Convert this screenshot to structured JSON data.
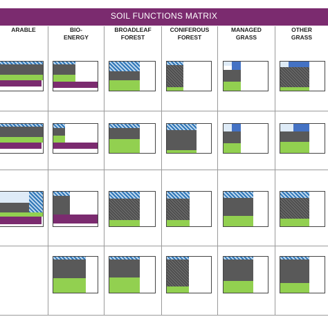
{
  "title": "SOIL FUNCTIONS MATRIX",
  "columns": [
    {
      "line1": "ARABLE",
      "line2": ""
    },
    {
      "line1": "BIO-",
      "line2": "ENERGY"
    },
    {
      "line1": "BROADLEAF",
      "line2": "FOREST"
    },
    {
      "line1": "CONIFEROUS",
      "line2": "FOREST"
    },
    {
      "line1": "MANAGED",
      "line2": "GRASS"
    },
    {
      "line1": "OTHER",
      "line2": "GRASS"
    }
  ],
  "colors": {
    "title_bar": "#7b2b6f",
    "purple": "#7b2b6f",
    "green": "#92d050",
    "dark_grey": "#595959",
    "blue": "#4472c4",
    "light_blue": "#deebf7",
    "hatched_blue": "#9dc3e6"
  },
  "segment_types": [
    "hatched-blue",
    "blue",
    "light-blue",
    "dark-grey",
    "hatched-dark",
    "green",
    "purple"
  ],
  "rows": [
    [
      [
        {
          "c": "hatch",
          "x": 0,
          "y": 0,
          "w": 1,
          "h": 0.12
        },
        {
          "c": "grey",
          "x": 0,
          "y": 0.12,
          "w": 1,
          "h": 0.34
        },
        {
          "c": "green",
          "x": 0,
          "y": 0.46,
          "w": 1,
          "h": 0.18
        },
        {
          "c": "purple",
          "x": 0,
          "y": 0.64,
          "w": 4,
          "h": 0.2
        }
      ],
      [
        {
          "c": "hatch",
          "x": 0,
          "y": 0,
          "w": 0.5,
          "h": 0.12
        },
        {
          "c": "grey",
          "x": 0,
          "y": 0.12,
          "w": 0.5,
          "h": 0.34
        },
        {
          "c": "green",
          "x": 0,
          "y": 0.46,
          "w": 0.5,
          "h": 0.22
        },
        {
          "c": "purple",
          "x": 0,
          "y": 0.68,
          "w": 1,
          "h": 0.2
        }
      ],
      [
        {
          "c": "hatch",
          "x": 0,
          "y": 0,
          "w": 0.66,
          "h": 0.34
        },
        {
          "c": "grey",
          "x": 0,
          "y": 0.34,
          "w": 0.66,
          "h": 0.3
        },
        {
          "c": "green",
          "x": 0,
          "y": 0.64,
          "w": 0.66,
          "h": 0.36
        }
      ],
      [
        {
          "c": "hatch",
          "x": 0,
          "y": 0,
          "w": 0.38,
          "h": 0.14
        },
        {
          "c": "dkhatch",
          "x": 0,
          "y": 0.14,
          "w": 0.38,
          "h": 0.72
        },
        {
          "c": "green",
          "x": 0,
          "y": 0.86,
          "w": 0.38,
          "h": 0.14
        }
      ],
      [
        {
          "c": "light",
          "x": 0,
          "y": 0,
          "w": 0.2,
          "h": 0.16
        },
        {
          "c": "blue",
          "x": 0.2,
          "y": 0,
          "w": 0.2,
          "h": 0.3
        },
        {
          "c": "grey",
          "x": 0,
          "y": 0.3,
          "w": 0.4,
          "h": 0.38
        },
        {
          "c": "green",
          "x": 0,
          "y": 0.68,
          "w": 0.4,
          "h": 0.32
        }
      ],
      [
        {
          "c": "light",
          "x": 0,
          "y": 0,
          "w": 0.2,
          "h": 0.2
        },
        {
          "c": "blue",
          "x": 0.2,
          "y": 0,
          "w": 0.45,
          "h": 0.2
        },
        {
          "c": "dkhatch",
          "x": 0,
          "y": 0.2,
          "w": 0.65,
          "h": 0.66
        },
        {
          "c": "green",
          "x": 0,
          "y": 0.86,
          "w": 0.65,
          "h": 0.14
        }
      ]
    ],
    [
      [
        {
          "c": "hatch",
          "x": 0,
          "y": 0,
          "w": 1,
          "h": 0.12
        },
        {
          "c": "grey",
          "x": 0,
          "y": 0.12,
          "w": 1,
          "h": 0.34
        },
        {
          "c": "green",
          "x": 0,
          "y": 0.46,
          "w": 1,
          "h": 0.18
        },
        {
          "c": "purple",
          "x": 0,
          "y": 0.64,
          "w": 4,
          "h": 0.2
        }
      ],
      [
        {
          "c": "hatch",
          "x": 0,
          "y": 0,
          "w": 0.28,
          "h": 0.16
        },
        {
          "c": "grey",
          "x": 0,
          "y": 0.16,
          "w": 0.28,
          "h": 0.26
        },
        {
          "c": "green",
          "x": 0,
          "y": 0.42,
          "w": 0.28,
          "h": 0.22
        },
        {
          "c": "purple",
          "x": 0,
          "y": 0.64,
          "w": 1,
          "h": 0.2
        }
      ],
      [
        {
          "c": "hatch",
          "x": 0,
          "y": 0,
          "w": 0.66,
          "h": 0.16
        },
        {
          "c": "grey",
          "x": 0,
          "y": 0.16,
          "w": 0.66,
          "h": 0.36
        },
        {
          "c": "green",
          "x": 0,
          "y": 0.52,
          "w": 0.66,
          "h": 0.48
        }
      ],
      [
        {
          "c": "hatch",
          "x": 0,
          "y": 0,
          "w": 0.66,
          "h": 0.22
        },
        {
          "c": "grey",
          "x": 0,
          "y": 0.22,
          "w": 0.66,
          "h": 0.66
        },
        {
          "c": "green",
          "x": 0,
          "y": 0.88,
          "w": 0.66,
          "h": 0.12
        }
      ],
      [
        {
          "c": "light",
          "x": 0,
          "y": 0,
          "w": 0.2,
          "h": 0.28
        },
        {
          "c": "blue",
          "x": 0.2,
          "y": 0,
          "w": 0.2,
          "h": 0.28
        },
        {
          "c": "grey",
          "x": 0,
          "y": 0.28,
          "w": 0.4,
          "h": 0.38
        },
        {
          "c": "green",
          "x": 0,
          "y": 0.66,
          "w": 0.4,
          "h": 0.34
        }
      ],
      [
        {
          "c": "light",
          "x": 0,
          "y": 0,
          "w": 0.3,
          "h": 0.28
        },
        {
          "c": "blue",
          "x": 0.3,
          "y": 0,
          "w": 0.35,
          "h": 0.28
        },
        {
          "c": "grey",
          "x": 0,
          "y": 0.28,
          "w": 0.65,
          "h": 0.34
        },
        {
          "c": "green",
          "x": 0,
          "y": 0.62,
          "w": 0.65,
          "h": 0.38
        }
      ]
    ],
    [
      [
        {
          "c": "light",
          "x": 0,
          "y": 0,
          "w": 0.72,
          "h": 0.32
        },
        {
          "c": "hatch",
          "x": 0.72,
          "y": 0,
          "w": 0.28,
          "h": 0.6
        },
        {
          "c": "grey",
          "x": 0,
          "y": 0.32,
          "w": 0.72,
          "h": 0.28
        },
        {
          "c": "green",
          "x": 0,
          "y": 0.6,
          "w": 1,
          "h": 0.12
        },
        {
          "c": "purple",
          "x": 0,
          "y": 0.72,
          "w": 4,
          "h": 0.2
        }
      ],
      [
        {
          "c": "hatch",
          "x": 0,
          "y": 0,
          "w": 0.38,
          "h": 0.14
        },
        {
          "c": "grey",
          "x": 0,
          "y": 0.14,
          "w": 0.38,
          "h": 0.52
        },
        {
          "c": "purple",
          "x": 0,
          "y": 0.66,
          "w": 1,
          "h": 0.24
        }
      ],
      [
        {
          "c": "hatch",
          "x": 0,
          "y": 0,
          "w": 0.66,
          "h": 0.22
        },
        {
          "c": "dkhatch",
          "x": 0,
          "y": 0.22,
          "w": 0.66,
          "h": 0.58
        },
        {
          "c": "green",
          "x": 0,
          "y": 0.8,
          "w": 0.66,
          "h": 0.2
        }
      ],
      [
        {
          "c": "hatch",
          "x": 0,
          "y": 0,
          "w": 0.52,
          "h": 0.22
        },
        {
          "c": "dkhatch",
          "x": 0,
          "y": 0.22,
          "w": 0.52,
          "h": 0.58
        },
        {
          "c": "green",
          "x": 0,
          "y": 0.8,
          "w": 0.52,
          "h": 0.2
        }
      ],
      [
        {
          "c": "hatch",
          "x": 0,
          "y": 0,
          "w": 0.66,
          "h": 0.2
        },
        {
          "c": "grey",
          "x": 0,
          "y": 0.2,
          "w": 0.66,
          "h": 0.5
        },
        {
          "c": "green",
          "x": 0,
          "y": 0.7,
          "w": 0.66,
          "h": 0.3
        }
      ],
      [
        {
          "c": "hatch",
          "x": 0,
          "y": 0,
          "w": 0.65,
          "h": 0.2
        },
        {
          "c": "dkhatch",
          "x": 0,
          "y": 0.2,
          "w": 0.65,
          "h": 0.56
        },
        {
          "c": "green",
          "x": 0,
          "y": 0.76,
          "w": 0.65,
          "h": 0.24
        }
      ]
    ],
    [
      [],
      [
        {
          "c": "hatch",
          "x": 0,
          "y": 0,
          "w": 0.72,
          "h": 0.1
        },
        {
          "c": "grey",
          "x": 0,
          "y": 0.1,
          "w": 0.72,
          "h": 0.5
        },
        {
          "c": "green",
          "x": 0,
          "y": 0.6,
          "w": 0.72,
          "h": 0.4
        }
      ],
      [
        {
          "c": "hatch",
          "x": 0,
          "y": 0,
          "w": 0.66,
          "h": 0.1
        },
        {
          "c": "grey",
          "x": 0,
          "y": 0.1,
          "w": 0.66,
          "h": 0.48
        },
        {
          "c": "green",
          "x": 0,
          "y": 0.58,
          "w": 0.66,
          "h": 0.42
        }
      ],
      [
        {
          "c": "hatch",
          "x": 0,
          "y": 0,
          "w": 0.5,
          "h": 0.1
        },
        {
          "c": "dkhatch",
          "x": 0,
          "y": 0.1,
          "w": 0.5,
          "h": 0.72
        },
        {
          "c": "green",
          "x": 0,
          "y": 0.82,
          "w": 0.5,
          "h": 0.18
        }
      ],
      [
        {
          "c": "hatch",
          "x": 0,
          "y": 0,
          "w": 0.66,
          "h": 0.1
        },
        {
          "c": "grey",
          "x": 0,
          "y": 0.1,
          "w": 0.66,
          "h": 0.56
        },
        {
          "c": "green",
          "x": 0,
          "y": 0.66,
          "w": 0.66,
          "h": 0.34
        }
      ],
      [
        {
          "c": "hatch",
          "x": 0,
          "y": 0,
          "w": 0.65,
          "h": 0.1
        },
        {
          "c": "grey",
          "x": 0,
          "y": 0.1,
          "w": 0.65,
          "h": 0.62
        },
        {
          "c": "green",
          "x": 0,
          "y": 0.72,
          "w": 0.65,
          "h": 0.28
        }
      ]
    ]
  ]
}
